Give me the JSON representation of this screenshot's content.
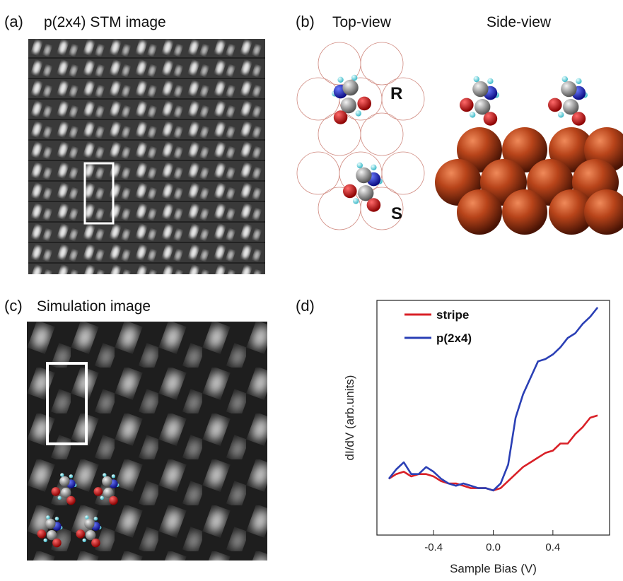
{
  "panels": {
    "a": {
      "label": "(a)",
      "title": "p(2x4) STM image"
    },
    "b": {
      "label": "(b)",
      "top_view": "Top-view",
      "side_view": "Side-view",
      "labels": [
        "R",
        "S"
      ]
    },
    "c": {
      "label": "(c)",
      "title": "Simulation image"
    },
    "d": {
      "label": "(d)"
    }
  },
  "chart_data": {
    "type": "line",
    "xlabel": "Sample Bias (V)",
    "ylabel": "dI/dV (arb.units)",
    "x": [
      -0.7,
      -0.65,
      -0.6,
      -0.55,
      -0.5,
      -0.45,
      -0.4,
      -0.35,
      -0.3,
      -0.25,
      -0.2,
      -0.15,
      -0.1,
      -0.05,
      0.0,
      0.05,
      0.1,
      0.15,
      0.2,
      0.25,
      0.3,
      0.35,
      0.4,
      0.45,
      0.5,
      0.55,
      0.6,
      0.65,
      0.7
    ],
    "series": [
      {
        "name": "stripe",
        "color": "#d92027",
        "values": [
          2.4,
          2.6,
          2.7,
          2.5,
          2.6,
          2.6,
          2.5,
          2.3,
          2.2,
          2.2,
          2.1,
          2.0,
          2.0,
          2.0,
          1.9,
          2.0,
          2.3,
          2.6,
          2.9,
          3.1,
          3.3,
          3.5,
          3.6,
          3.9,
          3.9,
          4.3,
          4.6,
          5.0,
          5.1
        ]
      },
      {
        "name": "p(2x4)",
        "color": "#2a3fb5",
        "values": [
          2.4,
          2.8,
          3.1,
          2.6,
          2.6,
          2.9,
          2.7,
          2.4,
          2.2,
          2.1,
          2.2,
          2.1,
          2.0,
          2.0,
          1.9,
          2.2,
          3.0,
          5.0,
          6.0,
          6.7,
          7.4,
          7.5,
          7.7,
          8.0,
          8.4,
          8.6,
          9.0,
          9.3,
          9.7
        ]
      }
    ],
    "xlim": [
      -0.78,
      0.78
    ],
    "xticks": [
      -0.4,
      {
        "value": 0,
        "label": "0.0"
      },
      0.4
    ],
    "ylim": [
      0,
      10
    ]
  }
}
